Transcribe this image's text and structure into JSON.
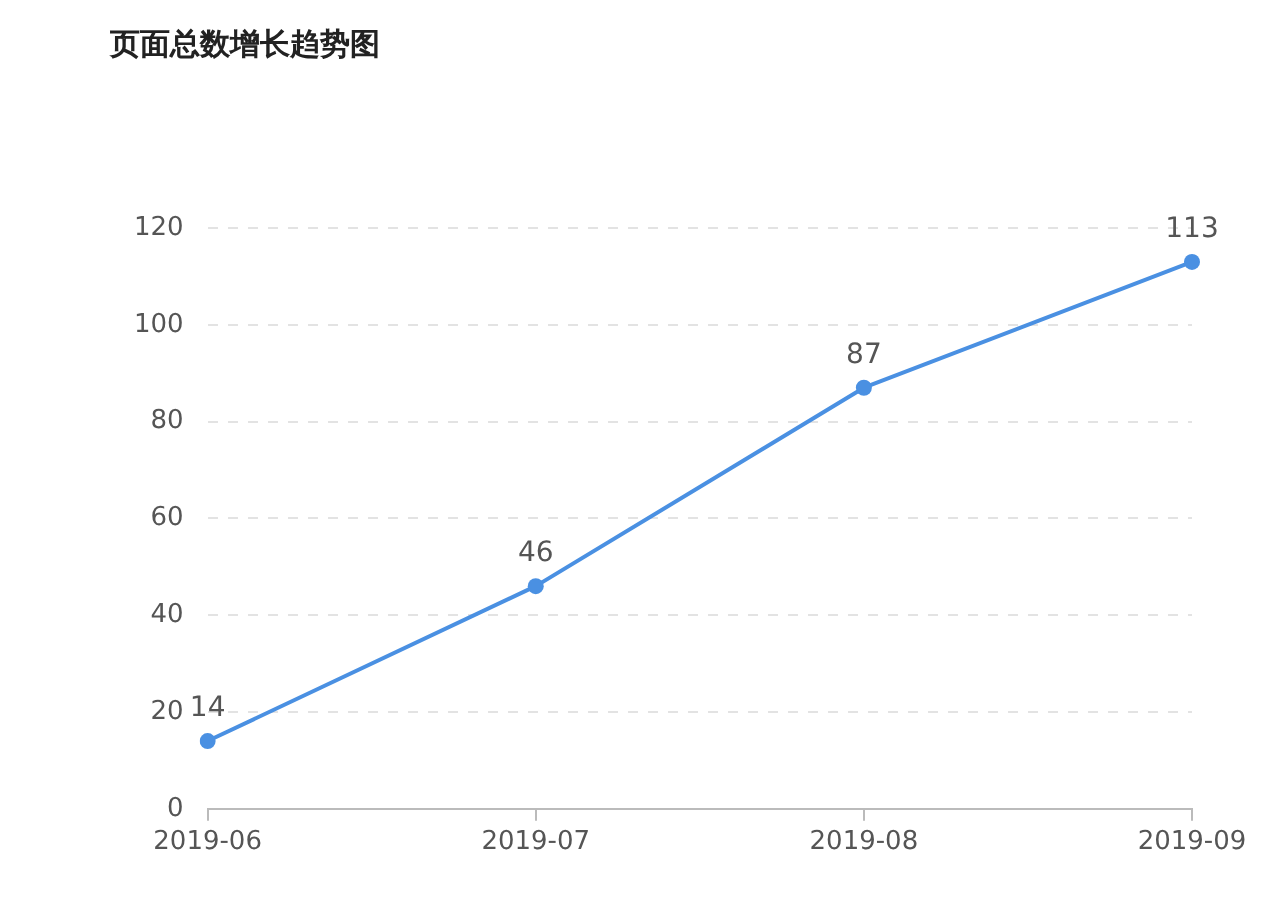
{
  "chart_data": {
    "type": "line",
    "title": "页面总数增长趋势图",
    "categories": [
      "2019-06",
      "2019-07",
      "2019-08",
      "2019-09"
    ],
    "series": [
      {
        "color": "#4a90e2",
        "values": [
          14,
          46,
          87,
          113
        ]
      }
    ],
    "ylim": [
      0,
      120
    ],
    "yticks": [
      0,
      20,
      40,
      60,
      80,
      100,
      120
    ],
    "grid": "y",
    "legend": false,
    "marker": "circle",
    "line_style": "solid",
    "data_labels": true
  }
}
